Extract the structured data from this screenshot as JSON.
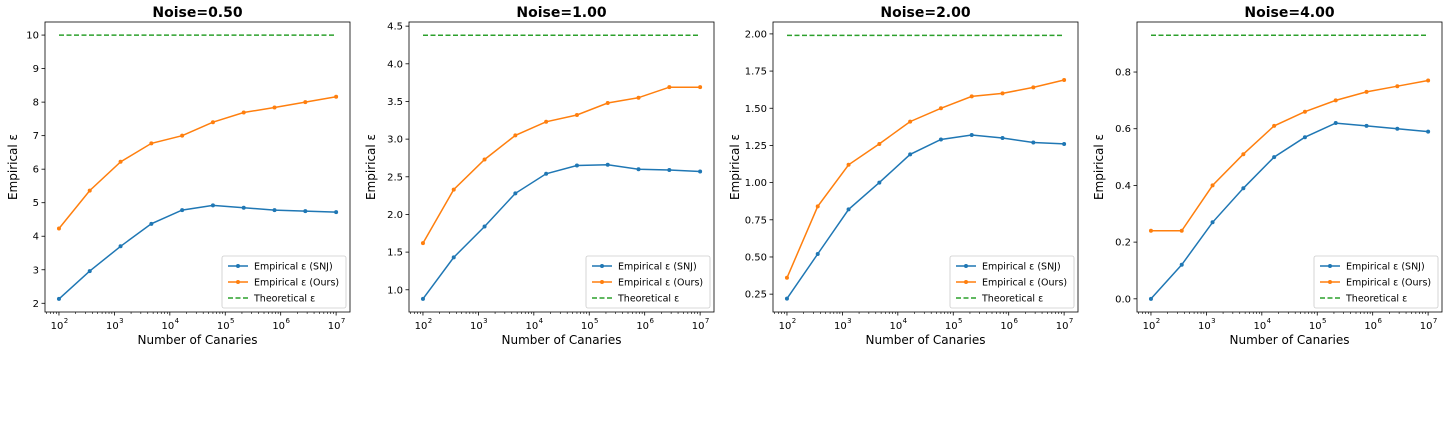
{
  "colors": {
    "snj": "#1f77b4",
    "ours": "#ff7f0e",
    "theoretical": "#2ca02c"
  },
  "chart_data": [
    {
      "type": "line",
      "title": "Noise=0.50",
      "xlabel": "Number of Canaries",
      "ylabel": "Empirical ε",
      "xscale": "log",
      "xlim": [
        56,
        17800000
      ],
      "ylim": [
        1.74,
        10.39
      ],
      "x": [
        100,
        359,
        1292,
        4642,
        16681,
        59948,
        215443,
        774264,
        2782559,
        10000000
      ],
      "xticks": [
        {
          "v": 100,
          "label": "10",
          "exp": "2"
        },
        {
          "v": 1000,
          "label": "10",
          "exp": "3"
        },
        {
          "v": 10000,
          "label": "10",
          "exp": "4"
        },
        {
          "v": 100000,
          "label": "10",
          "exp": "5"
        },
        {
          "v": 1000000,
          "label": "10",
          "exp": "6"
        },
        {
          "v": 10000000,
          "label": "10",
          "exp": "7"
        }
      ],
      "yticks": [
        2,
        3,
        4,
        5,
        6,
        7,
        8,
        9,
        10
      ],
      "ytick_labels": [
        "2",
        "3",
        "4",
        "5",
        "6",
        "7",
        "8",
        "9",
        "10"
      ],
      "legend": "lower right",
      "series": [
        {
          "name": "Empirical ε (SNJ)",
          "color_key": "snj",
          "style": "solid-marker",
          "values": [
            2.13,
            2.96,
            3.7,
            4.37,
            4.78,
            4.92,
            4.85,
            4.78,
            4.75,
            4.72
          ]
        },
        {
          "name": "Empirical ε (Ours)",
          "color_key": "ours",
          "style": "solid-marker",
          "values": [
            4.23,
            5.36,
            6.22,
            6.77,
            7.0,
            7.4,
            7.69,
            7.84,
            8.0,
            8.16
          ]
        },
        {
          "name": "Theoretical ε",
          "color_key": "theoretical",
          "style": "dashed",
          "values": [
            10,
            10,
            10,
            10,
            10,
            10,
            10,
            10,
            10,
            10
          ]
        }
      ]
    },
    {
      "type": "line",
      "title": "Noise=1.00",
      "xlabel": "Number of Canaries",
      "ylabel": "Empirical ε",
      "xscale": "log",
      "xlim": [
        56,
        17800000
      ],
      "ylim": [
        0.705,
        4.555
      ],
      "x": [
        100,
        359,
        1292,
        4642,
        16681,
        59948,
        215443,
        774264,
        2782559,
        10000000
      ],
      "xticks": [
        {
          "v": 100,
          "label": "10",
          "exp": "2"
        },
        {
          "v": 1000,
          "label": "10",
          "exp": "3"
        },
        {
          "v": 10000,
          "label": "10",
          "exp": "4"
        },
        {
          "v": 100000,
          "label": "10",
          "exp": "5"
        },
        {
          "v": 1000000,
          "label": "10",
          "exp": "6"
        },
        {
          "v": 10000000,
          "label": "10",
          "exp": "7"
        }
      ],
      "yticks": [
        1.0,
        1.5,
        2.0,
        2.5,
        3.0,
        3.5,
        4.0,
        4.5
      ],
      "ytick_labels": [
        "1.0",
        "1.5",
        "2.0",
        "2.5",
        "3.0",
        "3.5",
        "4.0",
        "4.5"
      ],
      "legend": "lower right",
      "series": [
        {
          "name": "Empirical ε (SNJ)",
          "color_key": "snj",
          "style": "solid-marker",
          "values": [
            0.88,
            1.43,
            1.84,
            2.28,
            2.54,
            2.65,
            2.66,
            2.6,
            2.59,
            2.57
          ]
        },
        {
          "name": "Empirical ε (Ours)",
          "color_key": "ours",
          "style": "solid-marker",
          "values": [
            1.62,
            2.33,
            2.73,
            3.05,
            3.23,
            3.32,
            3.48,
            3.55,
            3.69,
            3.69
          ]
        },
        {
          "name": "Theoretical ε",
          "color_key": "theoretical",
          "style": "dashed",
          "values": [
            4.38,
            4.38,
            4.38,
            4.38,
            4.38,
            4.38,
            4.38,
            4.38,
            4.38,
            4.38
          ]
        }
      ]
    },
    {
      "type": "line",
      "title": "Noise=2.00",
      "xlabel": "Number of Canaries",
      "ylabel": "Empirical ε",
      "xscale": "log",
      "xlim": [
        56,
        17800000
      ],
      "ylim": [
        0.13,
        2.08
      ],
      "x": [
        100,
        359,
        1292,
        4642,
        16681,
        59948,
        215443,
        774264,
        2782559,
        10000000
      ],
      "xticks": [
        {
          "v": 100,
          "label": "10",
          "exp": "2"
        },
        {
          "v": 1000,
          "label": "10",
          "exp": "3"
        },
        {
          "v": 10000,
          "label": "10",
          "exp": "4"
        },
        {
          "v": 100000,
          "label": "10",
          "exp": "5"
        },
        {
          "v": 1000000,
          "label": "10",
          "exp": "6"
        },
        {
          "v": 10000000,
          "label": "10",
          "exp": "7"
        }
      ],
      "yticks": [
        0.25,
        0.5,
        0.75,
        1.0,
        1.25,
        1.5,
        1.75,
        2.0
      ],
      "ytick_labels": [
        "0.25",
        "0.50",
        "0.75",
        "1.00",
        "1.25",
        "1.50",
        "1.75",
        "2.00"
      ],
      "legend": "lower right",
      "series": [
        {
          "name": "Empirical ε (SNJ)",
          "color_key": "snj",
          "style": "solid-marker",
          "values": [
            0.22,
            0.52,
            0.82,
            1.0,
            1.19,
            1.29,
            1.32,
            1.3,
            1.27,
            1.26
          ]
        },
        {
          "name": "Empirical ε (Ours)",
          "color_key": "ours",
          "style": "solid-marker",
          "values": [
            0.36,
            0.84,
            1.12,
            1.26,
            1.41,
            1.5,
            1.58,
            1.6,
            1.64,
            1.69
          ]
        },
        {
          "name": "Theoretical ε",
          "color_key": "theoretical",
          "style": "dashed",
          "values": [
            1.99,
            1.99,
            1.99,
            1.99,
            1.99,
            1.99,
            1.99,
            1.99,
            1.99,
            1.99
          ]
        }
      ]
    },
    {
      "type": "line",
      "title": "Noise=4.00",
      "xlabel": "Number of Canaries",
      "ylabel": "Empirical ε",
      "xscale": "log",
      "xlim": [
        56,
        17800000
      ],
      "ylim": [
        -0.0465,
        0.9765
      ],
      "x": [
        100,
        359,
        1292,
        4642,
        16681,
        59948,
        215443,
        774264,
        2782559,
        10000000
      ],
      "xticks": [
        {
          "v": 100,
          "label": "10",
          "exp": "2"
        },
        {
          "v": 1000,
          "label": "10",
          "exp": "3"
        },
        {
          "v": 10000,
          "label": "10",
          "exp": "4"
        },
        {
          "v": 100000,
          "label": "10",
          "exp": "5"
        },
        {
          "v": 1000000,
          "label": "10",
          "exp": "6"
        },
        {
          "v": 10000000,
          "label": "10",
          "exp": "7"
        }
      ],
      "yticks": [
        0.0,
        0.2,
        0.4,
        0.6,
        0.8
      ],
      "ytick_labels": [
        "0.0",
        "0.2",
        "0.4",
        "0.6",
        "0.8"
      ],
      "legend": "lower right",
      "series": [
        {
          "name": "Empirical ε (SNJ)",
          "color_key": "snj",
          "style": "solid-marker",
          "values": [
            0.0,
            0.12,
            0.27,
            0.39,
            0.5,
            0.57,
            0.62,
            0.61,
            0.6,
            0.59
          ]
        },
        {
          "name": "Empirical ε (Ours)",
          "color_key": "ours",
          "style": "solid-marker",
          "values": [
            0.24,
            0.24,
            0.4,
            0.51,
            0.61,
            0.66,
            0.7,
            0.73,
            0.75,
            0.77
          ]
        },
        {
          "name": "Theoretical ε",
          "color_key": "theoretical",
          "style": "dashed",
          "values": [
            0.93,
            0.93,
            0.93,
            0.93,
            0.93,
            0.93,
            0.93,
            0.93,
            0.93,
            0.93
          ]
        }
      ]
    }
  ]
}
